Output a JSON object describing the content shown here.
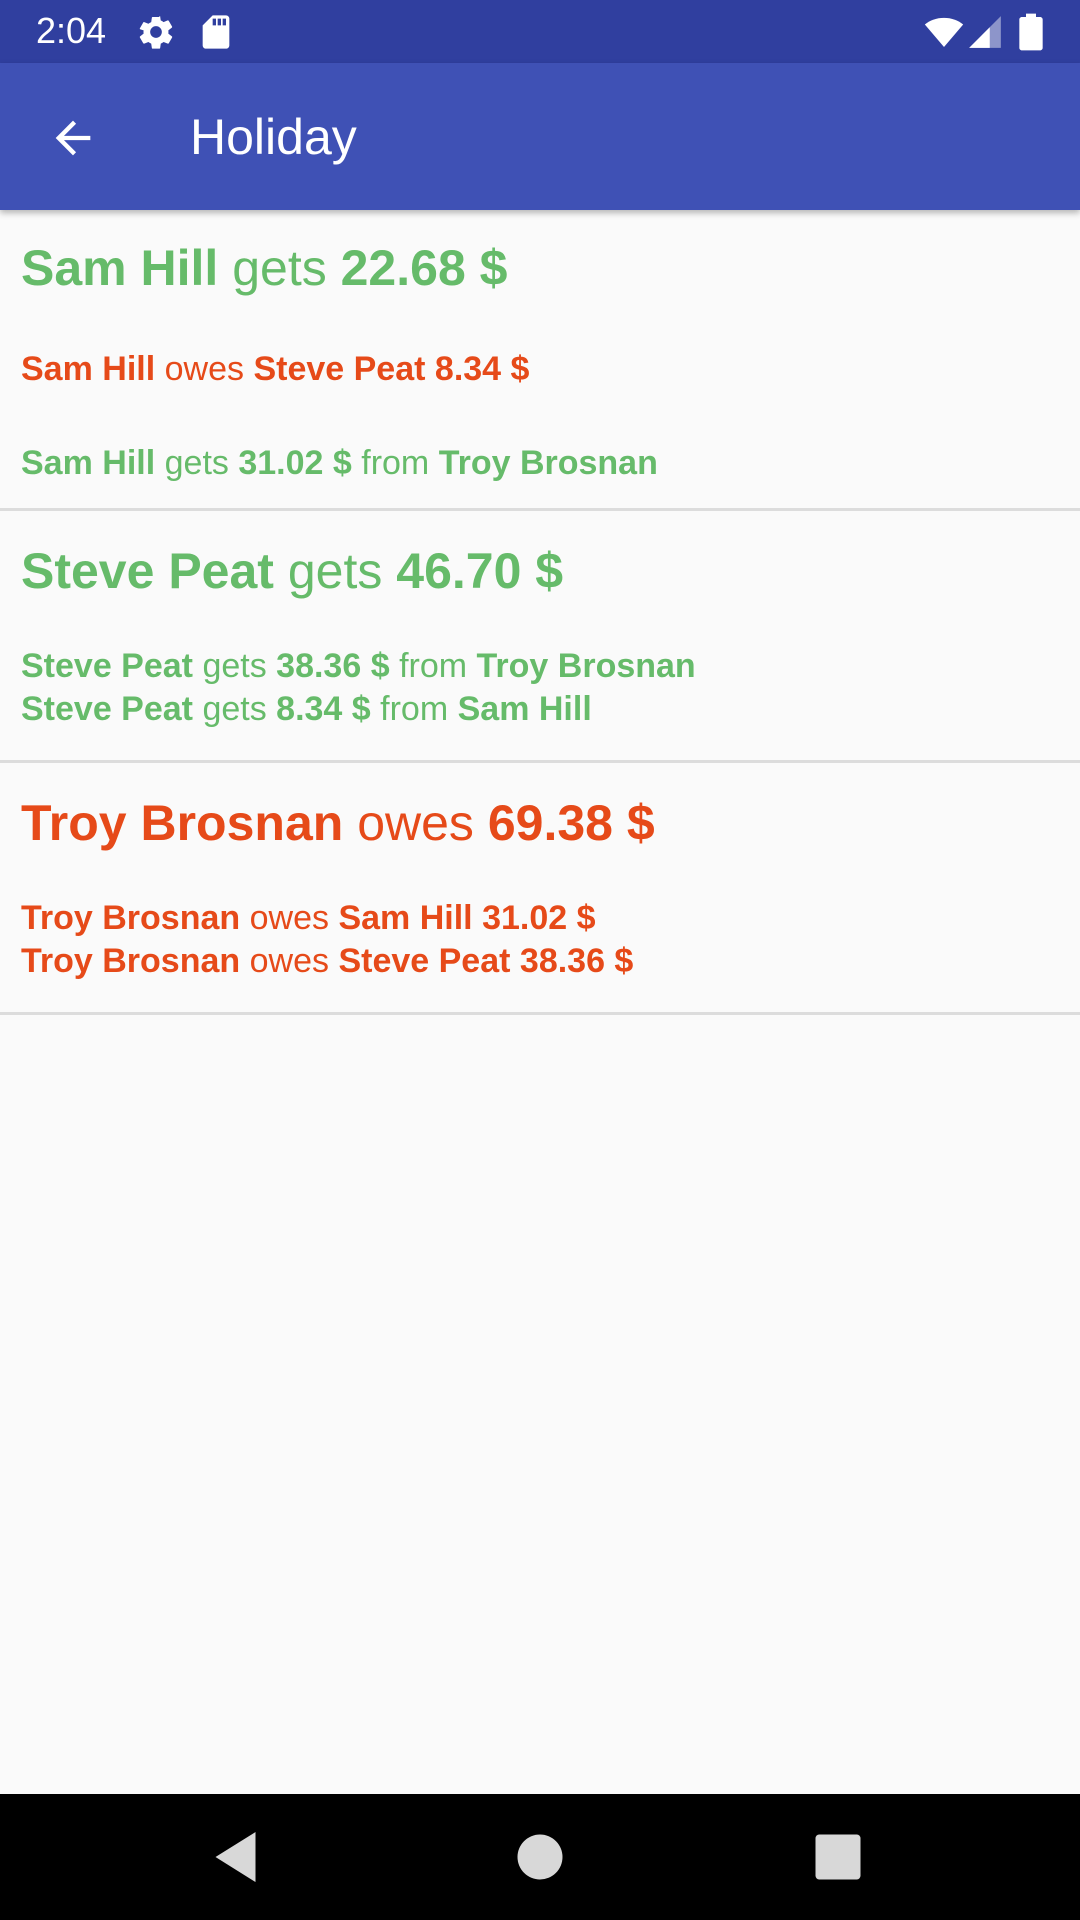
{
  "status_bar": {
    "time": "2:04",
    "icons": [
      "gear-icon",
      "sd-card-icon",
      "wifi-icon",
      "signal-icon",
      "battery-icon"
    ]
  },
  "app_bar": {
    "title": "Holiday",
    "back_icon": "arrow-back-icon"
  },
  "colors": {
    "status_bar": "#303f9f",
    "app_bar": "#3f51b5",
    "gets": "#66bb6a",
    "owes": "#e64a19",
    "background": "#fafafa",
    "divider": "#dcdcdc",
    "nav_bar": "#000000"
  },
  "people": [
    {
      "summary": {
        "name": "Sam Hill",
        "verb": "gets",
        "amount": "22.68 $"
      },
      "details": [
        {
          "name": "Sam Hill",
          "verb": "owes",
          "target": "Steve Peat",
          "amount": "8.34 $"
        },
        {
          "name": "Sam Hill",
          "verb": "gets",
          "amount": "31.02 $",
          "from": "from",
          "source": "Troy Brosnan"
        }
      ]
    },
    {
      "summary": {
        "name": "Steve Peat",
        "verb": "gets",
        "amount": "46.70 $"
      },
      "details": [
        {
          "name": "Steve Peat",
          "verb": "gets",
          "amount": "38.36 $",
          "from": "from",
          "source": "Troy Brosnan"
        },
        {
          "name": "Steve Peat",
          "verb": "gets",
          "amount": "8.34 $",
          "from": "from",
          "source": "Sam Hill"
        }
      ]
    },
    {
      "summary": {
        "name": "Troy Brosnan",
        "verb": "owes",
        "amount": "69.38 $"
      },
      "details": [
        {
          "name": "Troy Brosnan",
          "verb": "owes",
          "target": "Sam Hill",
          "amount": "31.02 $"
        },
        {
          "name": "Troy Brosnan",
          "verb": "owes",
          "target": "Steve Peat",
          "amount": "38.36 $"
        }
      ]
    }
  ],
  "nav_bar": {
    "icons": [
      "back-triangle-icon",
      "home-circle-icon",
      "recents-square-icon"
    ]
  }
}
